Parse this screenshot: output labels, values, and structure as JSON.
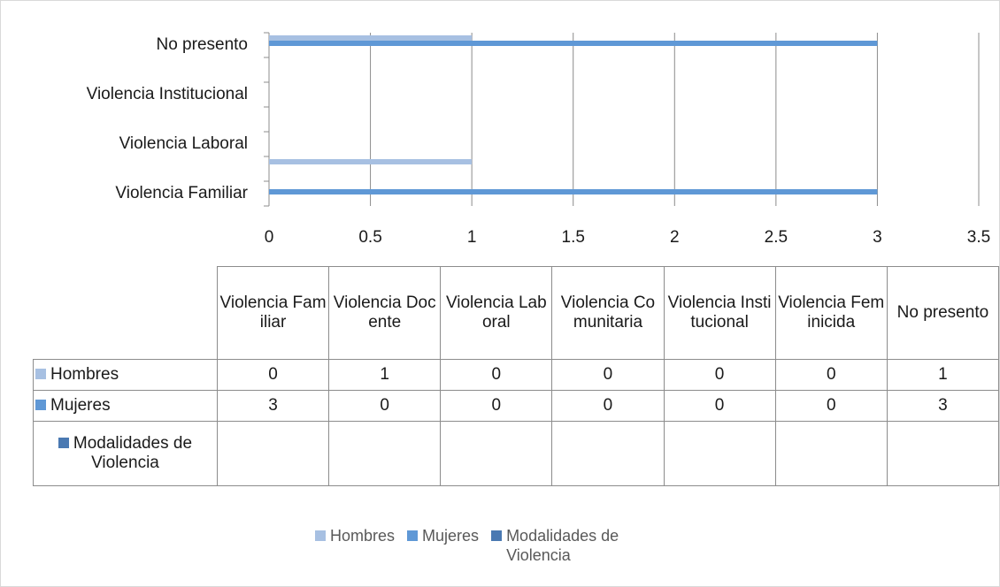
{
  "chart_data": {
    "type": "bar",
    "orientation": "horizontal",
    "categories": [
      "Violencia Familiar",
      "Violencia Docente",
      "Violencia Laboral",
      "Violencia Comunitaria",
      "Violencia Institucional",
      "Violencia Feminicida",
      "No presento"
    ],
    "series": [
      {
        "name": "Hombres",
        "color": "#a7c0e2",
        "values": [
          0,
          1,
          0,
          0,
          0,
          0,
          1
        ]
      },
      {
        "name": "Mujeres",
        "color": "#5f98d6",
        "values": [
          3,
          0,
          0,
          0,
          0,
          0,
          3
        ]
      },
      {
        "name": "Modalidades de Violencia",
        "color": "#4a79b2",
        "values": [
          null,
          null,
          null,
          null,
          null,
          null,
          null
        ]
      }
    ],
    "xlim": [
      0,
      3.5
    ],
    "xticks": [
      0,
      0.5,
      1,
      1.5,
      2,
      2.5,
      3,
      3.5
    ],
    "grid": true,
    "legend": "bottom",
    "data_table": true
  }
}
